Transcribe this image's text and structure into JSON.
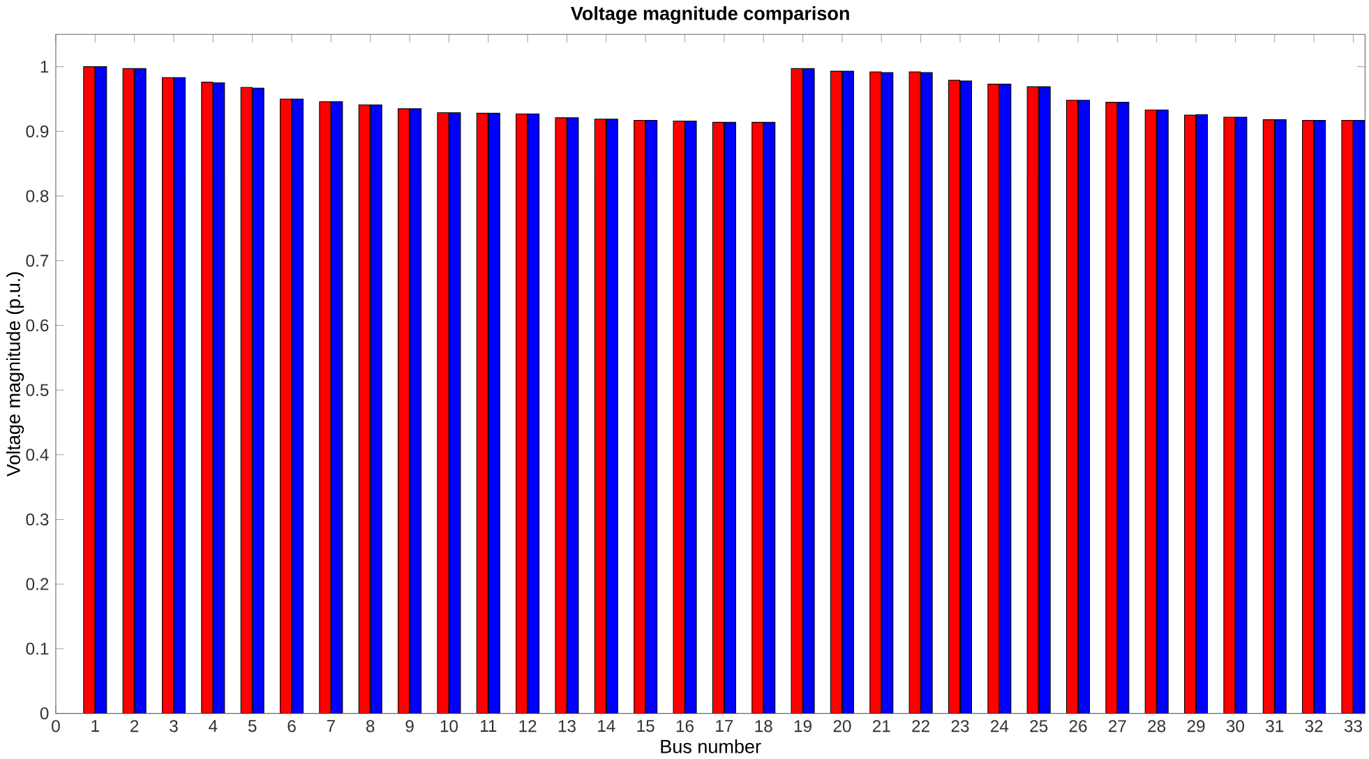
{
  "chart_data": {
    "type": "bar",
    "title": "Voltage magnitude comparison",
    "xlabel": "Bus number",
    "ylabel": "Voltage magnitude (p.u.)",
    "x": [
      1,
      2,
      3,
      4,
      5,
      6,
      7,
      8,
      9,
      10,
      11,
      12,
      13,
      14,
      15,
      16,
      17,
      18,
      19,
      20,
      21,
      22,
      23,
      24,
      25,
      26,
      27,
      28,
      29,
      30,
      31,
      32,
      33
    ],
    "series": [
      {
        "color": "#ff0000",
        "values": [
          1.0,
          0.997,
          0.983,
          0.976,
          0.968,
          0.95,
          0.946,
          0.941,
          0.935,
          0.929,
          0.928,
          0.927,
          0.921,
          0.919,
          0.917,
          0.916,
          0.914,
          0.914,
          0.997,
          0.993,
          0.992,
          0.992,
          0.979,
          0.973,
          0.969,
          0.948,
          0.945,
          0.933,
          0.925,
          0.922,
          0.918,
          0.917,
          0.917
        ]
      },
      {
        "color": "#0000ff",
        "values": [
          1.0,
          0.997,
          0.983,
          0.975,
          0.967,
          0.95,
          0.946,
          0.941,
          0.935,
          0.929,
          0.928,
          0.927,
          0.921,
          0.919,
          0.917,
          0.916,
          0.914,
          0.914,
          0.997,
          0.993,
          0.991,
          0.991,
          0.978,
          0.973,
          0.969,
          0.948,
          0.945,
          0.933,
          0.926,
          0.922,
          0.918,
          0.917,
          0.917
        ]
      }
    ],
    "xlim": [
      0,
      33.3
    ],
    "xticks": [
      0,
      1,
      2,
      3,
      4,
      5,
      6,
      7,
      8,
      9,
      10,
      11,
      12,
      13,
      14,
      15,
      16,
      17,
      18,
      19,
      20,
      21,
      22,
      23,
      24,
      25,
      26,
      27,
      28,
      29,
      30,
      31,
      32,
      33
    ],
    "ylim": [
      0,
      1.05
    ],
    "yticks": [
      0,
      0.1,
      0.2,
      0.3,
      0.4,
      0.5,
      0.6,
      0.7,
      0.8,
      0.9,
      1
    ]
  }
}
